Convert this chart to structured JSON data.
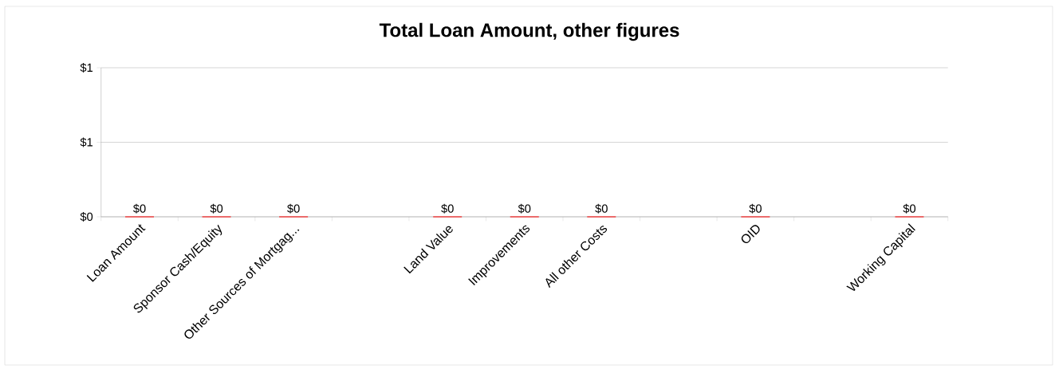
{
  "chart_data": {
    "type": "bar",
    "title": "Total Loan Amount, other figures",
    "categories": [
      "Loan Amount",
      "Sponsor Cash/Equity",
      "Other Sources of Mortgag...",
      null,
      "Land Value",
      "Improvements",
      "All other Costs",
      null,
      "OID",
      null,
      "Working Capital"
    ],
    "values": [
      0,
      0,
      0,
      null,
      0,
      0,
      0,
      null,
      0,
      null,
      0
    ],
    "value_labels": [
      "$0",
      "$0",
      "$0",
      null,
      "$0",
      "$0",
      "$0",
      null,
      "$0",
      null,
      "$0"
    ],
    "color": "#ff0000",
    "ylim": [
      0,
      1
    ],
    "yticks": [
      {
        "value": 0,
        "label": "$0"
      },
      {
        "value": 0.5,
        "label": "$1"
      },
      {
        "value": 1,
        "label": "$1"
      }
    ],
    "grid": "y"
  }
}
